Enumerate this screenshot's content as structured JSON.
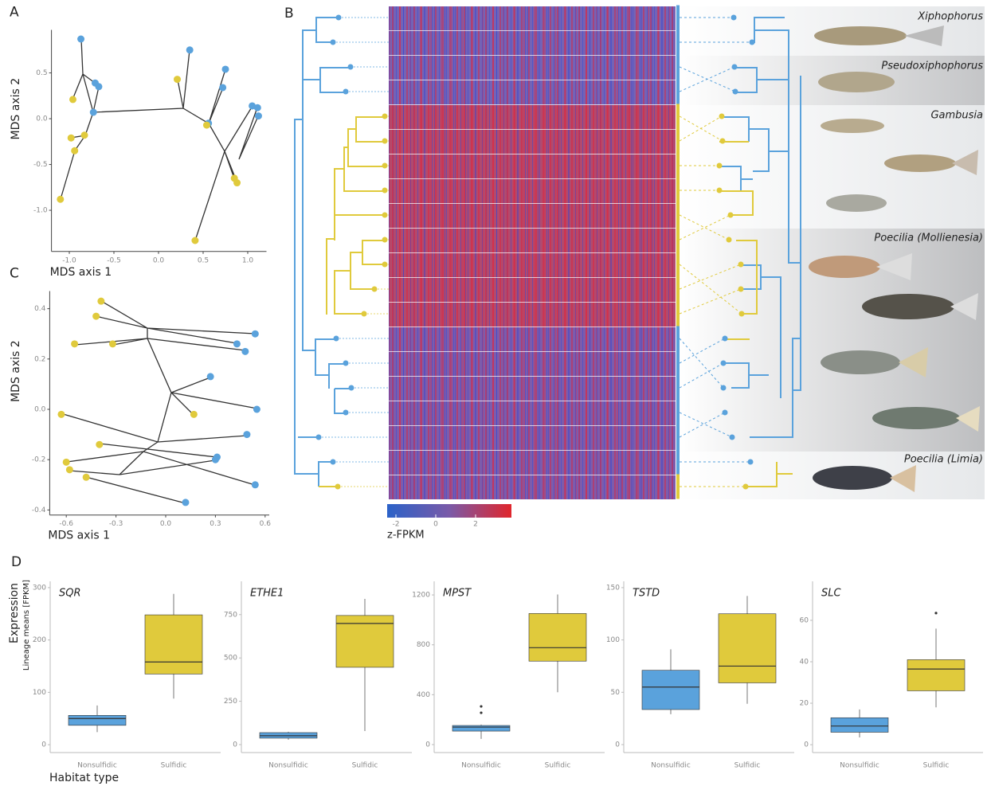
{
  "chart_data": [
    {
      "type": "scatter",
      "panel_label": "A",
      "xlabel": "MDS axis 1",
      "ylabel": "MDS axis 2",
      "xlim": [
        -1.2,
        1.21
      ],
      "ylim": [
        -1.45,
        0.97
      ],
      "xticks": [
        {
          "value": -1.0,
          "label": "-1.0"
        },
        -0.5,
        {
          "value": 0.0,
          "label": "0.0"
        },
        0.5,
        {
          "value": 1.0,
          "label": "1.0"
        }
      ],
      "yticks": [
        {
          "value": -1.0,
          "label": "-1.0"
        },
        -0.5,
        {
          "value": 0.0,
          "label": "0.0"
        },
        0.5
      ],
      "series": [
        {
          "color": "#5aa2dc",
          "x": [
            -0.87,
            -0.71,
            -0.67,
            -0.73,
            0.35,
            0.75,
            0.72,
            0.56,
            1.05,
            1.11,
            1.12
          ],
          "values": [
            0.87,
            0.39,
            0.35,
            0.07,
            0.75,
            0.54,
            0.34,
            -0.05,
            0.14,
            0.12,
            0.03
          ]
        },
        {
          "color": "#e0ca3c",
          "x": [
            -0.96,
            0.21,
            -0.83,
            -0.98,
            -0.94,
            -1.1,
            0.54,
            0.85,
            0.88,
            0.41
          ],
          "values": [
            0.21,
            0.43,
            -0.18,
            -0.21,
            -0.35,
            -0.88,
            -0.07,
            -0.65,
            -0.7,
            -1.33
          ]
        }
      ]
    },
    {
      "type": "heatmap",
      "panel_label": "B",
      "clabel": "z-FPKM",
      "clim": [
        -2.44,
        3.8
      ],
      "cticks": [
        -2,
        0,
        2
      ],
      "colorscale": [
        "#2b62c8",
        "#7a5aa8",
        "#e0262c"
      ],
      "clade_labels": [
        "Xiphophorus",
        "Pseudoxiphophorus",
        "Gambusia",
        "Poecilia (Mollienesia)",
        "Poecilia (Limia)"
      ]
    },
    {
      "type": "scatter",
      "panel_label": "C",
      "xlabel": "MDS axis 1",
      "ylabel": "MDS axis 2",
      "xlim": [
        -0.7,
        0.625
      ],
      "ylim": [
        -0.42,
        0.47
      ],
      "xticks": [
        -0.6,
        -0.3,
        {
          "value": 0.0,
          "label": "0.0"
        },
        0.3,
        0.6
      ],
      "yticks": [
        -0.4,
        -0.2,
        {
          "value": 0.0,
          "label": "0.0"
        },
        0.2,
        0.4
      ],
      "series": [
        {
          "color": "#e0ca3c",
          "x": [
            -0.39,
            -0.42,
            -0.55,
            -0.32,
            -0.63,
            0.17,
            -0.4,
            -0.6,
            -0.58,
            -0.48
          ],
          "values": [
            0.43,
            0.37,
            0.26,
            0.26,
            -0.02,
            -0.02,
            -0.14,
            -0.21,
            -0.24,
            -0.27
          ]
        },
        {
          "color": "#5aa2dc",
          "x": [
            0.54,
            0.43,
            0.48,
            0.27,
            0.55,
            0.49,
            0.31,
            0.3,
            0.54,
            0.12
          ],
          "values": [
            0.3,
            0.26,
            0.23,
            0.13,
            0.0,
            -0.1,
            -0.19,
            -0.2,
            -0.3,
            -0.37
          ]
        }
      ]
    },
    {
      "type": "box",
      "panel_label": "D",
      "title": "SQR",
      "ylabel": "Expression",
      "ylabel_sub": "Lineage means [FPKM]",
      "xlabel": "Habitat type",
      "categories": [
        "Nonsulfidic",
        "Sulfidic"
      ],
      "colors": [
        "#5aa2dc",
        "#e0ca3c"
      ],
      "ylim": [
        -15,
        312
      ],
      "yticks": [
        0,
        100,
        200,
        300
      ],
      "boxes": [
        {
          "min": 24,
          "q1": 37,
          "median": 50,
          "q3": 56,
          "max": 75,
          "outliers": []
        },
        {
          "min": 88,
          "q1": 135,
          "median": 158,
          "q3": 248,
          "max": 288,
          "outliers": []
        }
      ]
    },
    {
      "type": "box",
      "title": "ETHE1",
      "categories": [
        "Nonsulfidic",
        "Sulfidic"
      ],
      "colors": [
        "#5aa2dc",
        "#e0ca3c"
      ],
      "ylim": [
        -46,
        942
      ],
      "yticks": [
        0,
        250,
        500,
        750
      ],
      "boxes": [
        {
          "min": 28,
          "q1": 37,
          "median": 51,
          "q3": 69,
          "max": 74,
          "outliers": []
        },
        {
          "min": 78,
          "q1": 446,
          "median": 699,
          "q3": 745,
          "max": 841,
          "outliers": []
        }
      ]
    },
    {
      "type": "box",
      "title": "MPST",
      "categories": [
        "Nonsulfidic",
        "Sulfidic"
      ],
      "colors": [
        "#5aa2dc",
        "#e0ca3c"
      ],
      "ylim": [
        -64,
        1309
      ],
      "yticks": [
        0,
        400,
        800,
        1200
      ],
      "boxes": [
        {
          "min": 45,
          "q1": 108,
          "median": 140,
          "q3": 153,
          "max": 160,
          "outliers": [
            255,
            306
          ]
        },
        {
          "min": 420,
          "q1": 669,
          "median": 777,
          "q3": 1051,
          "max": 1204,
          "outliers": []
        }
      ]
    },
    {
      "type": "box",
      "title": "TSTD",
      "categories": [
        "Nonsulfidic",
        "Sulfidic"
      ],
      "colors": [
        "#5aa2dc",
        "#e0ca3c"
      ],
      "ylim": [
        -7.6,
        156
      ],
      "yticks": [
        0,
        50,
        100,
        150
      ],
      "boxes": [
        {
          "min": 29,
          "q1": 33.5,
          "median": 55,
          "q3": 71,
          "max": 91,
          "outliers": []
        },
        {
          "min": 39,
          "q1": 59,
          "median": 75,
          "q3": 125,
          "max": 142,
          "outliers": []
        }
      ]
    },
    {
      "type": "box",
      "title": "SLC",
      "categories": [
        "Nonsulfidic",
        "Sulfidic"
      ],
      "colors": [
        "#5aa2dc",
        "#e0ca3c"
      ],
      "ylim": [
        -3.8,
        78.8
      ],
      "yticks": [
        0,
        20,
        40,
        60
      ],
      "boxes": [
        {
          "min": 3.5,
          "q1": 6,
          "median": 9,
          "q3": 13,
          "max": 17,
          "outliers": []
        },
        {
          "min": 18,
          "q1": 26,
          "median": 36.5,
          "q3": 41,
          "max": 56,
          "outliers": [
            63.5
          ]
        }
      ]
    }
  ]
}
